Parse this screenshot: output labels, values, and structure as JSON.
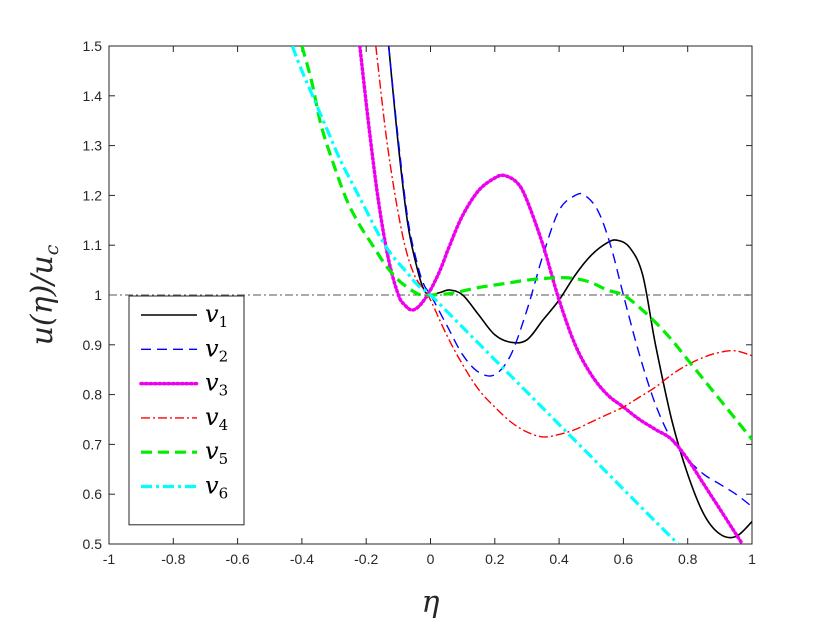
{
  "chart_data": {
    "type": "line",
    "title": "",
    "xlabel": "η",
    "ylabel": "u(η)/u_c",
    "ylabel_parts": {
      "main": "u(η)/u",
      "sub": "c"
    },
    "xlim": [
      -1,
      1
    ],
    "ylim": [
      0.5,
      1.5
    ],
    "xticks": [
      -1,
      -0.8,
      -0.6,
      -0.4,
      -0.2,
      0,
      0.2,
      0.4,
      0.6,
      0.8,
      1
    ],
    "yticks": [
      0.5,
      0.6,
      0.7,
      0.8,
      0.9,
      1,
      1.1,
      1.2,
      1.3,
      1.4,
      1.5
    ],
    "xtick_labels": [
      "-1",
      "-0.8",
      "-0.6",
      "-0.4",
      "-0.2",
      "0",
      "0.2",
      "0.4",
      "0.6",
      "0.8",
      "1"
    ],
    "ytick_labels": [
      "0.5",
      "0.6",
      "0.7",
      "0.8",
      "0.9",
      "1",
      "1.1",
      "1.2",
      "1.3",
      "1.4",
      "1.5"
    ],
    "grid": false,
    "legend_position": "bottom-left",
    "reference_line": {
      "y": 1,
      "color": "#555555",
      "style": "dash-dot"
    },
    "series": [
      {
        "name": "v",
        "sub": "1",
        "color": "#000000",
        "style": "solid",
        "x": [
          -0.13,
          -0.1,
          -0.07,
          -0.04,
          -0.02,
          0,
          0.03,
          0.06,
          0.1,
          0.15,
          0.2,
          0.25,
          0.3,
          0.35,
          0.4,
          0.45,
          0.5,
          0.55,
          0.58,
          0.62,
          0.66,
          0.7,
          0.75,
          0.8,
          0.85,
          0.9,
          0.95,
          1
        ],
        "y": [
          1.5,
          1.3,
          1.14,
          1.05,
          1.01,
          1.0,
          1.005,
          1.01,
          1.0,
          0.96,
          0.92,
          0.905,
          0.91,
          0.95,
          0.99,
          1.04,
          1.08,
          1.105,
          1.11,
          1.095,
          1.04,
          0.9,
          0.75,
          0.64,
          0.56,
          0.52,
          0.515,
          0.545
        ]
      },
      {
        "name": "v",
        "sub": "2",
        "color": "#0000ff",
        "style": "dashed",
        "x": [
          -0.13,
          -0.1,
          -0.07,
          -0.04,
          -0.02,
          0,
          0.05,
          0.1,
          0.15,
          0.2,
          0.25,
          0.3,
          0.35,
          0.4,
          0.45,
          0.48,
          0.52,
          0.56,
          0.6,
          0.65,
          0.7,
          0.75,
          0.8,
          0.85,
          0.9,
          0.95,
          1
        ],
        "y": [
          1.5,
          1.31,
          1.15,
          1.06,
          1.02,
          1.0,
          0.94,
          0.88,
          0.845,
          0.84,
          0.88,
          0.97,
          1.08,
          1.17,
          1.2,
          1.2,
          1.17,
          1.1,
          1.0,
          0.88,
          0.78,
          0.71,
          0.67,
          0.64,
          0.62,
          0.6,
          0.575
        ]
      },
      {
        "name": "v",
        "sub": "3",
        "color": "#ee00ee",
        "style": "dotted",
        "x": [
          -0.22,
          -0.19,
          -0.16,
          -0.13,
          -0.1,
          -0.08,
          -0.06,
          -0.04,
          -0.02,
          0,
          0.03,
          0.06,
          0.1,
          0.15,
          0.2,
          0.23,
          0.27,
          0.3,
          0.35,
          0.4,
          0.45,
          0.5,
          0.55,
          0.6,
          0.65,
          0.7,
          0.75,
          0.8,
          0.85,
          0.9,
          0.95,
          0.97
        ],
        "y": [
          1.5,
          1.33,
          1.18,
          1.07,
          1.0,
          0.98,
          0.97,
          0.975,
          0.99,
          1.01,
          1.05,
          1.1,
          1.16,
          1.21,
          1.235,
          1.24,
          1.225,
          1.19,
          1.1,
          0.99,
          0.9,
          0.84,
          0.8,
          0.775,
          0.75,
          0.73,
          0.71,
          0.67,
          0.62,
          0.57,
          0.52,
          0.5
        ]
      },
      {
        "name": "v",
        "sub": "4",
        "color": "#ff0000",
        "style": "dash-dot",
        "x": [
          -0.17,
          -0.14,
          -0.11,
          -0.08,
          -0.05,
          -0.02,
          0,
          0.05,
          0.1,
          0.15,
          0.2,
          0.25,
          0.3,
          0.35,
          0.4,
          0.45,
          0.5,
          0.55,
          0.6,
          0.65,
          0.7,
          0.75,
          0.8,
          0.85,
          0.9,
          0.95,
          1
        ],
        "y": [
          1.5,
          1.33,
          1.2,
          1.1,
          1.04,
          1.01,
          0.99,
          0.92,
          0.86,
          0.81,
          0.775,
          0.745,
          0.725,
          0.715,
          0.72,
          0.73,
          0.745,
          0.76,
          0.775,
          0.795,
          0.815,
          0.84,
          0.86,
          0.875,
          0.885,
          0.888,
          0.878
        ]
      },
      {
        "name": "v",
        "sub": "5",
        "color": "#00ee00",
        "style": "dashed-thick",
        "x": [
          -0.4,
          -0.37,
          -0.34,
          -0.3,
          -0.26,
          -0.22,
          -0.18,
          -0.14,
          -0.1,
          -0.06,
          -0.03,
          0,
          0.05,
          0.1,
          0.15,
          0.2,
          0.25,
          0.3,
          0.35,
          0.4,
          0.45,
          0.5,
          0.55,
          0.6,
          0.65,
          0.7,
          0.75,
          0.8,
          0.85,
          0.9,
          0.95,
          1
        ],
        "y": [
          1.5,
          1.43,
          1.34,
          1.26,
          1.19,
          1.14,
          1.1,
          1.06,
          1.03,
          1.01,
          1.0,
          1.0,
          1.002,
          1.008,
          1.015,
          1.02,
          1.025,
          1.03,
          1.033,
          1.035,
          1.033,
          1.025,
          1.01,
          1.0,
          0.975,
          0.945,
          0.91,
          0.87,
          0.83,
          0.79,
          0.75,
          0.71
        ]
      },
      {
        "name": "v",
        "sub": "6",
        "color": "#00ffff",
        "style": "dash-dot-thick",
        "x": [
          -0.43,
          -0.4,
          -0.36,
          -0.32,
          -0.28,
          -0.24,
          -0.2,
          -0.16,
          -0.12,
          -0.08,
          -0.04,
          0,
          0.1,
          0.2,
          0.3,
          0.4,
          0.5,
          0.6,
          0.7,
          0.77
        ],
        "y": [
          1.5,
          1.45,
          1.39,
          1.33,
          1.27,
          1.22,
          1.17,
          1.12,
          1.08,
          1.05,
          1.02,
          1.0,
          0.935,
          0.87,
          0.805,
          0.74,
          0.675,
          0.61,
          0.545,
          0.5
        ]
      }
    ]
  }
}
